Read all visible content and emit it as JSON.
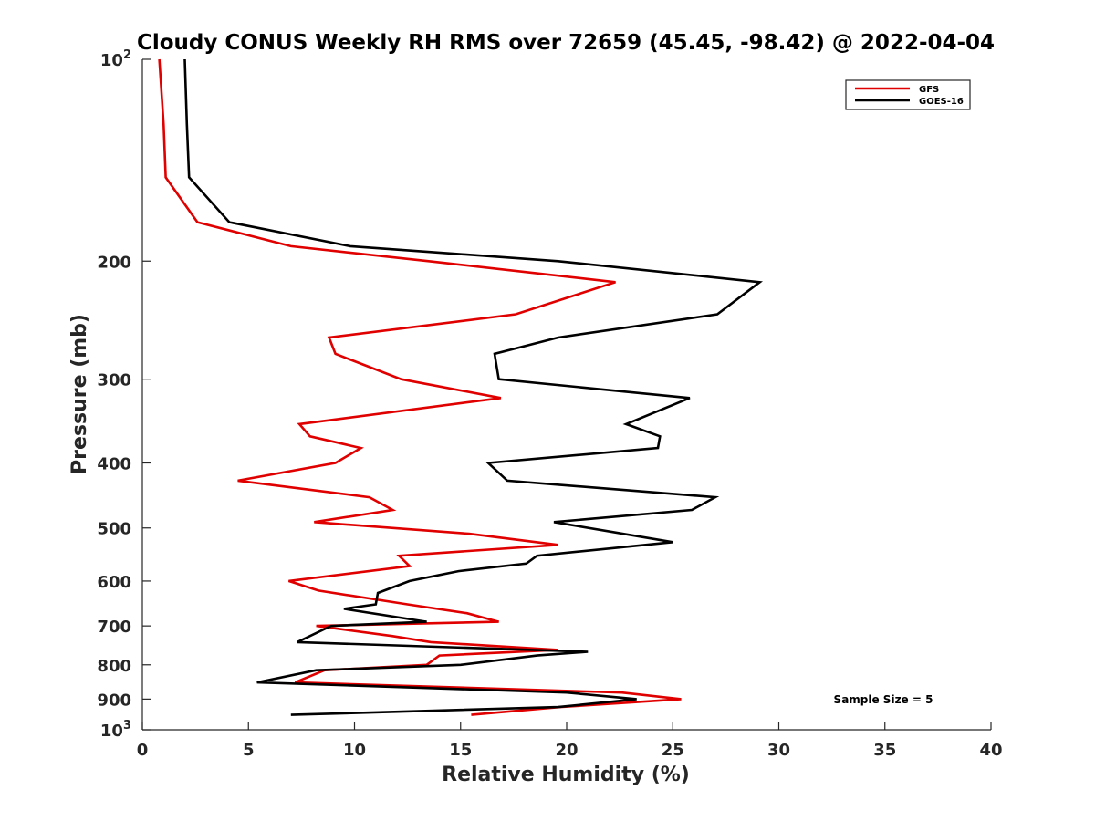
{
  "chart_data": {
    "type": "line",
    "title": "Cloudy CONUS Weekly RH RMS over 72659 (45.45, -98.42) @ 2022-04-04",
    "xlabel": "Relative Humidity (%)",
    "ylabel": "Pressure (mb)",
    "xlim": [
      0,
      40
    ],
    "ylim": [
      100,
      1000
    ],
    "y_scale": "log",
    "y_reversed": true,
    "grid": false,
    "legend_position": "top-right",
    "x_ticks": [
      "0",
      "5",
      "10",
      "15",
      "20",
      "25",
      "30",
      "35",
      "40"
    ],
    "y_ticks": [
      {
        "value": 100,
        "base": "10",
        "exp": "2"
      },
      {
        "value": 200,
        "label": "200"
      },
      {
        "value": 300,
        "label": "300"
      },
      {
        "value": 400,
        "label": "400"
      },
      {
        "value": 500,
        "label": "500"
      },
      {
        "value": 600,
        "label": "600"
      },
      {
        "value": 700,
        "label": "700"
      },
      {
        "value": 800,
        "label": "800"
      },
      {
        "value": 900,
        "label": "900"
      },
      {
        "value": 1000,
        "base": "10",
        "exp": "3"
      }
    ],
    "series": [
      {
        "name": "GFS",
        "color": "#e00000",
        "points": [
          [
            0.8,
            100
          ],
          [
            1.0,
            125
          ],
          [
            1.1,
            150
          ],
          [
            2.6,
            175
          ],
          [
            7.0,
            190
          ],
          [
            13.5,
            200
          ],
          [
            22.3,
            215
          ],
          [
            17.6,
            240
          ],
          [
            8.8,
            260
          ],
          [
            9.1,
            275
          ],
          [
            12.2,
            300
          ],
          [
            16.9,
            320
          ],
          [
            7.4,
            350
          ],
          [
            7.9,
            365
          ],
          [
            10.3,
            380
          ],
          [
            9.1,
            400
          ],
          [
            4.5,
            425
          ],
          [
            10.7,
            450
          ],
          [
            11.8,
            470
          ],
          [
            8.1,
            490
          ],
          [
            15.4,
            510
          ],
          [
            19.6,
            530
          ],
          [
            12.1,
            550
          ],
          [
            12.6,
            570
          ],
          [
            6.9,
            600
          ],
          [
            8.3,
            620
          ],
          [
            12.5,
            650
          ],
          [
            15.3,
            670
          ],
          [
            16.8,
            690
          ],
          [
            8.2,
            700
          ],
          [
            11.8,
            725
          ],
          [
            13.6,
            740
          ],
          [
            19.6,
            760
          ],
          [
            14.0,
            775
          ],
          [
            13.4,
            800
          ],
          [
            8.6,
            815
          ],
          [
            7.2,
            850
          ],
          [
            22.6,
            880
          ],
          [
            25.4,
            900
          ],
          [
            19.7,
            925
          ],
          [
            15.5,
            950
          ]
        ]
      },
      {
        "name": "GOES-16",
        "color": "#000000",
        "points": [
          [
            2.0,
            100
          ],
          [
            2.1,
            125
          ],
          [
            2.2,
            150
          ],
          [
            4.1,
            175
          ],
          [
            9.8,
            190
          ],
          [
            19.6,
            200
          ],
          [
            29.1,
            215
          ],
          [
            27.1,
            240
          ],
          [
            19.6,
            260
          ],
          [
            16.6,
            275
          ],
          [
            16.8,
            300
          ],
          [
            25.8,
            320
          ],
          [
            22.8,
            350
          ],
          [
            24.4,
            365
          ],
          [
            24.3,
            380
          ],
          [
            16.3,
            400
          ],
          [
            17.2,
            425
          ],
          [
            27.0,
            450
          ],
          [
            25.9,
            470
          ],
          [
            19.4,
            490
          ],
          [
            25.0,
            525
          ],
          [
            18.6,
            550
          ],
          [
            18.1,
            565
          ],
          [
            14.9,
            580
          ],
          [
            12.6,
            600
          ],
          [
            11.1,
            625
          ],
          [
            11.0,
            650
          ],
          [
            9.5,
            660
          ],
          [
            13.4,
            690
          ],
          [
            8.9,
            700
          ],
          [
            7.3,
            740
          ],
          [
            21.0,
            765
          ],
          [
            18.6,
            775
          ],
          [
            15.0,
            800
          ],
          [
            8.2,
            815
          ],
          [
            5.4,
            850
          ],
          [
            20.0,
            880
          ],
          [
            23.3,
            900
          ],
          [
            19.6,
            925
          ],
          [
            7.0,
            950
          ]
        ]
      }
    ],
    "legend": [
      {
        "label": "GFS",
        "color": "#e00000"
      },
      {
        "label": "GOES-16",
        "color": "#000000"
      }
    ],
    "annotations": [
      {
        "text": "Sample Size = 5"
      }
    ]
  }
}
